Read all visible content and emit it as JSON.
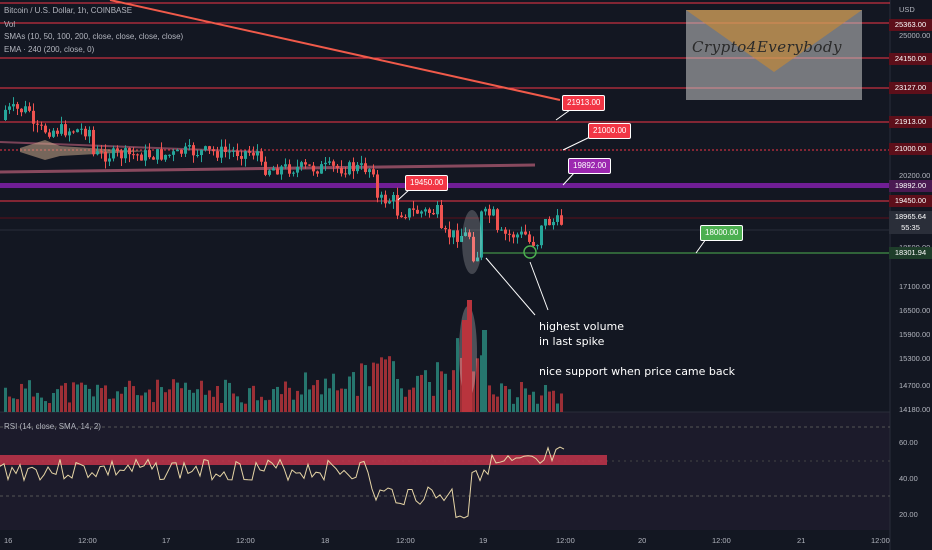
{
  "header": {
    "symbol": "Bitcoin / U.S. Dollar, 1h, COINBASE",
    "vol": "Vol",
    "smas": "SMAs (10, 50, 100, 200, close, close, close, close)",
    "ema": "EMA · 240 (200, close, 0)",
    "currency": "USD"
  },
  "rsi_legend": "RSI (14, close, SMA, 14, 2)",
  "watermark": "Crypto4Everybody",
  "annotations": {
    "line1": "highest volume",
    "line2": "in last spike",
    "line3": "nice support when price came back"
  },
  "callouts": {
    "c21913": "21913.00",
    "c21000": "21000.00",
    "c19892": "19892.00",
    "c19450": "19450.00",
    "c18000": "18000.00"
  },
  "price_axis": {
    "ticks": [
      "25000.00",
      "20200.00",
      "18500.00",
      "17100.00",
      "16500.00",
      "15900.00",
      "15300.00",
      "14700.00",
      "14180.00"
    ],
    "rsi_ticks": [
      "60.00",
      "40.00",
      "20.00"
    ],
    "tags": {
      "t25363": "25363.00",
      "t24150": "24150.00",
      "t23127": "23127.00",
      "t21913": "21913.00",
      "t21000": "21000.00",
      "t19892": "19892.00",
      "t19450": "19450.00",
      "t18965": "18965.64",
      "t_countdown": "55:35",
      "t18301": "18301.94"
    }
  },
  "time_axis": [
    "16",
    "12:00",
    "17",
    "12:00",
    "18",
    "12:00",
    "19",
    "12:00",
    "20",
    "12:00",
    "21",
    "12:00"
  ],
  "colors": {
    "bg": "#131722",
    "up": "#26a69a",
    "down": "#ef5350",
    "level": "#f23645",
    "purple": "#9c27b0",
    "support": "#4caf50"
  }
}
